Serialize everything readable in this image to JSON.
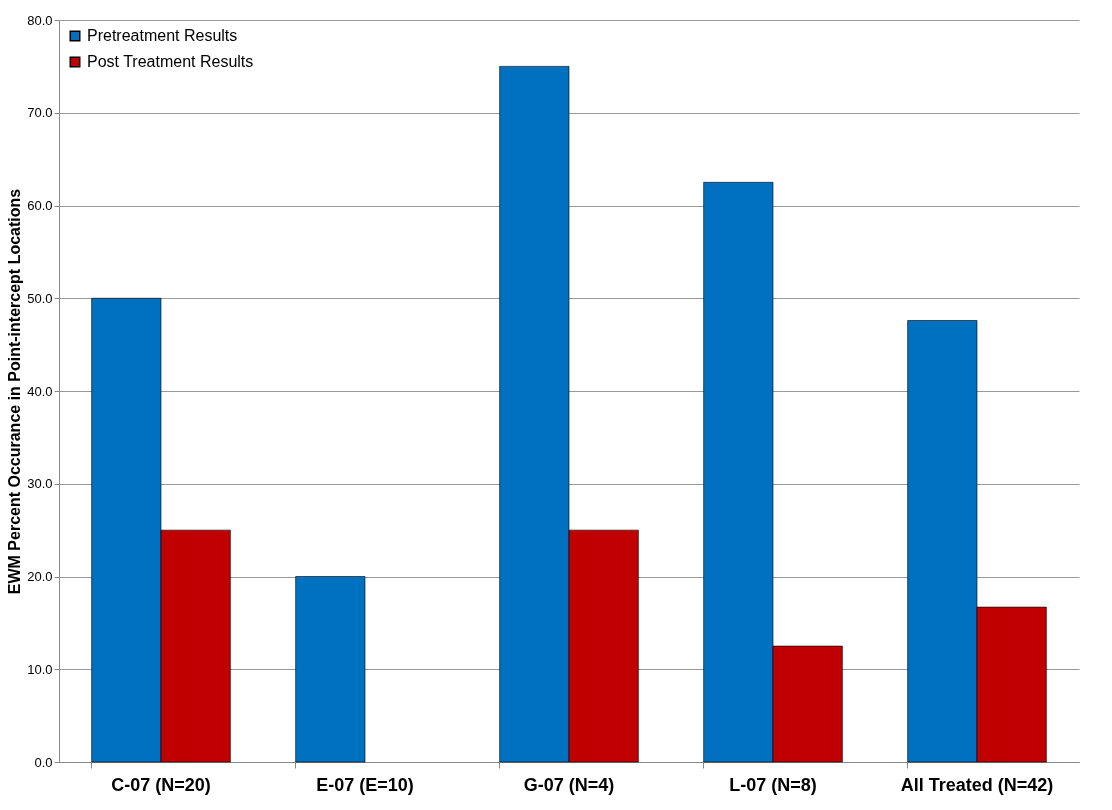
{
  "chart_data": {
    "type": "bar",
    "ylabel": "EWM Percent Occurance in Point-intercept Locations",
    "categories": [
      "C-07 (N=20)",
      "E-07 (E=10)",
      "G-07 (N=4)",
      "L-07 (N=8)",
      "All Treated (N=42)"
    ],
    "series": [
      {
        "name": "Pretreatment Results",
        "color": "#0070c0",
        "values": [
          50,
          20,
          75,
          62.5,
          47.6
        ]
      },
      {
        "name": "Post Treatment Results",
        "color": "#c00000",
        "values": [
          25,
          null,
          25,
          12.5,
          16.7
        ]
      }
    ],
    "ylim": [
      0,
      80
    ],
    "yticks": [
      {
        "value": 0,
        "label": "0.0"
      },
      {
        "value": 10,
        "label": "10.0"
      },
      {
        "value": 20,
        "label": "20.0"
      },
      {
        "value": 30,
        "label": "30.0"
      },
      {
        "value": 40,
        "label": "40.0"
      },
      {
        "value": 50,
        "label": "50.0"
      },
      {
        "value": 60,
        "label": "60.0"
      },
      {
        "value": 70,
        "label": "70.0"
      },
      {
        "value": 80,
        "label": "80.0"
      }
    ],
    "grid": "y",
    "legend": "top left"
  }
}
